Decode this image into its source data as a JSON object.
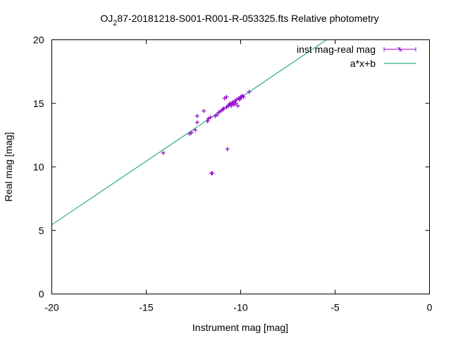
{
  "chart_data": {
    "type": "scatter",
    "title_prefix": "OJ",
    "title_sub": "2",
    "title_suffix": "87-20181218-S001-R001-R-053325.fts Relative photometry",
    "xlabel": "Instrument mag [mag]",
    "ylabel": "Real mag [mag]",
    "xlim": [
      -20,
      0
    ],
    "ylim": [
      0,
      20
    ],
    "xticks": [
      -20,
      -15,
      -10,
      -5,
      0
    ],
    "yticks": [
      0,
      5,
      10,
      15,
      20
    ],
    "grid": false,
    "legend_position": "top-right",
    "series": [
      {
        "name": "inst mag-real mag",
        "style": "points-errorbars",
        "color": "#9400d3",
        "points": [
          [
            -14.1,
            11.1
          ],
          [
            -12.7,
            12.6
          ],
          [
            -12.6,
            12.7
          ],
          [
            -12.4,
            12.9
          ],
          [
            -12.3,
            13.5
          ],
          [
            -12.3,
            14.0
          ],
          [
            -11.95,
            14.4
          ],
          [
            -11.75,
            13.6
          ],
          [
            -11.7,
            13.8
          ],
          [
            -11.6,
            13.9
          ],
          [
            -11.55,
            9.5
          ],
          [
            -11.5,
            9.5
          ],
          [
            -11.35,
            14.0
          ],
          [
            -11.25,
            14.1
          ],
          [
            -11.15,
            14.3
          ],
          [
            -11.05,
            14.4
          ],
          [
            -10.95,
            14.5
          ],
          [
            -10.9,
            14.6
          ],
          [
            -10.85,
            15.4
          ],
          [
            -10.75,
            15.5
          ],
          [
            -10.75,
            14.7
          ],
          [
            -10.7,
            11.4
          ],
          [
            -10.65,
            14.8
          ],
          [
            -10.6,
            14.9
          ],
          [
            -10.55,
            15.0
          ],
          [
            -10.5,
            14.8
          ],
          [
            -10.45,
            15.0
          ],
          [
            -10.4,
            15.1
          ],
          [
            -10.35,
            14.9
          ],
          [
            -10.3,
            15.2
          ],
          [
            -10.25,
            15.0
          ],
          [
            -10.2,
            15.3
          ],
          [
            -10.15,
            14.8
          ],
          [
            -10.1,
            15.4
          ],
          [
            -10.05,
            15.3
          ],
          [
            -10.0,
            15.5
          ],
          [
            -9.95,
            15.5
          ],
          [
            -9.9,
            15.6
          ],
          [
            -9.85,
            15.5
          ],
          [
            -9.55,
            15.9
          ]
        ]
      },
      {
        "name": "a*x+b",
        "style": "line",
        "color": "#009e73",
        "slope": 1.0,
        "intercept": 25.45
      }
    ]
  }
}
